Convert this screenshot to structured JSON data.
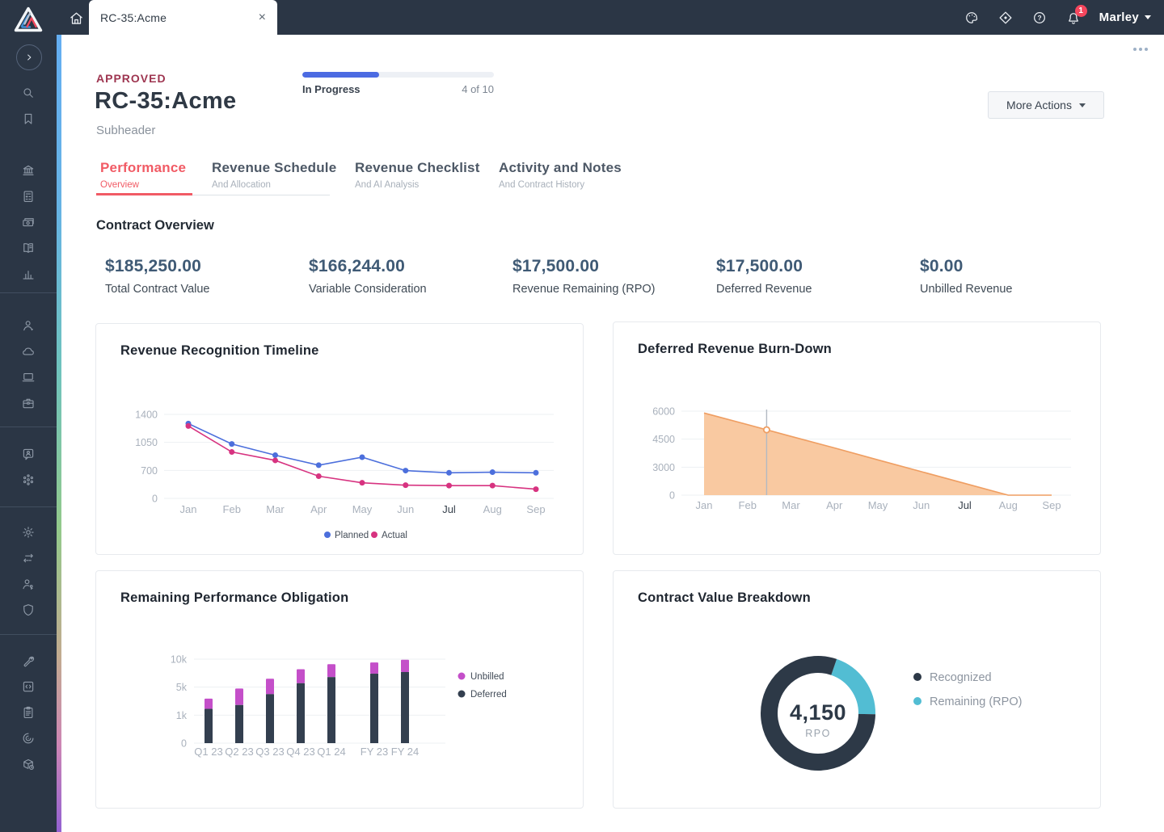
{
  "topbar": {
    "tab_title": "RC-35:Acme",
    "user_name": "Marley",
    "notification_count": "1",
    "icons": [
      "palette",
      "target",
      "help",
      "bell"
    ],
    "glyphs": {
      "close": "×"
    }
  },
  "sidebar": {
    "logo": "company-logo",
    "collapse": "chevron-right",
    "top_icons": [
      "search",
      "bookmark"
    ],
    "groups": [
      [
        "bank",
        "calculator",
        "cash",
        "book",
        "bar-chart"
      ],
      [
        "person",
        "cloud",
        "laptop",
        "briefcase"
      ],
      [
        "chat-person",
        "network"
      ],
      [
        "gear",
        "swap-arrows",
        "person-key",
        "shield"
      ],
      [
        "wrench",
        "code",
        "clipboard",
        "power",
        "package"
      ]
    ]
  },
  "header": {
    "status_badge": "APPROVED",
    "title": "RC-35:Acme",
    "subtitle": "Subheader",
    "progress": {
      "label": "In Progress",
      "count": "4 of 10",
      "percent": 40
    },
    "more_actions_label": "More Actions"
  },
  "tabs": [
    {
      "label": "Performance",
      "sublabel": "Overview",
      "active": true
    },
    {
      "label": "Revenue Schedule",
      "sublabel": "And Allocation",
      "active": false
    },
    {
      "label": "Revenue Checklist",
      "sublabel": "And AI Analysis",
      "active": false
    },
    {
      "label": "Activity and Notes",
      "sublabel": "And Contract History",
      "active": false
    }
  ],
  "overview": {
    "heading": "Contract Overview",
    "stats": [
      {
        "value": "$185,250.00",
        "label": "Total Contract Value"
      },
      {
        "value": "$166,244.00",
        "label": "Variable Consideration"
      },
      {
        "value": "$17,500.00",
        "label": "Revenue Remaining (RPO)"
      },
      {
        "value": "$17,500.00",
        "label": "Deferred Revenue"
      },
      {
        "value": "$0.00",
        "label": "Unbilled Revenue"
      }
    ]
  },
  "colors": {
    "chrome_bg": "#2b3645",
    "accent_red": "#f15b65",
    "status_red": "#9e3550",
    "progress_blue": "#4c6be2",
    "stat_value_blue": "#3f5a75"
  },
  "chart_data": [
    {
      "type": "line",
      "title": "Revenue Recognition Timeline",
      "x": [
        "Jan",
        "Feb",
        "Mar",
        "Apr",
        "May",
        "Jun",
        "Jul",
        "Aug",
        "Sep"
      ],
      "highlight_x": "Jul",
      "ylim": [
        0,
        1400
      ],
      "yticks": [
        0,
        700,
        1050,
        1400
      ],
      "ytick_labels": [
        "0",
        "700",
        "1050",
        "1400"
      ],
      "grid": true,
      "legend_position": "bottom",
      "series": [
        {
          "name": "Planned",
          "color": "#4c6fdc",
          "values": [
            1285,
            1030,
            890,
            765,
            865,
            695,
            640,
            655,
            640
          ]
        },
        {
          "name": "Actual",
          "color": "#d73380",
          "values": [
            1255,
            930,
            825,
            555,
            390,
            330,
            320,
            320,
            230
          ]
        }
      ]
    },
    {
      "type": "area",
      "title": "Deferred Revenue Burn-Down",
      "x": [
        "Jan",
        "Feb",
        "Mar",
        "Apr",
        "May",
        "Jun",
        "Jul",
        "Aug",
        "Sep"
      ],
      "highlight_x": "Jul",
      "ylim": [
        0,
        6000
      ],
      "yticks": [
        0,
        3000,
        4500,
        6000
      ],
      "ytick_labels": [
        "0",
        "3000",
        "4500",
        "6000"
      ],
      "grid": true,
      "series": [
        {
          "name": "Deferred Revenue",
          "line_color": "#ef9e62",
          "fill_color": "#f9c9a1",
          "values": [
            5900,
            5280,
            4650,
            4030,
            3390,
            2520,
            1260,
            0,
            0
          ]
        }
      ],
      "marker": {
        "x_index": 1.44,
        "value": 5000
      }
    },
    {
      "type": "bar",
      "title": "Remaining Performance Obligation",
      "categories": [
        "Q1 23",
        "Q2 23",
        "Q3 23",
        "Q4 23",
        "Q1 24",
        "FY 23",
        "FY 24"
      ],
      "gap_after_index": 4,
      "ylim": [
        0,
        10000
      ],
      "yticks": [
        0,
        1000,
        5000,
        10000
      ],
      "ytick_labels": [
        "0",
        "1k",
        "5k",
        "10k"
      ],
      "grid": true,
      "legend_position": "right",
      "legend_order": [
        "Unbilled",
        "Deferred"
      ],
      "series": [
        {
          "name": "Deferred",
          "color": "#333f4f",
          "values": [
            1900,
            2450,
            4000,
            5700,
            6800,
            7400,
            7700
          ]
        },
        {
          "name": "Unbilled",
          "color": "#c44fc9",
          "values": [
            1460,
            2350,
            2500,
            2500,
            2300,
            2000,
            2200
          ]
        }
      ]
    },
    {
      "type": "pie",
      "title": "Contract Value Breakdown",
      "donut": true,
      "center_value": "4,150",
      "center_label": "RPO",
      "start_angle_deg": 19,
      "slices": [
        {
          "name": "Remaining (RPO)",
          "color": "#52bdd3",
          "percent": 20
        },
        {
          "name": "Recognized",
          "color": "#2d3947",
          "percent": 80
        }
      ],
      "legend_order": [
        "Recognized",
        "Remaining (RPO)"
      ],
      "legend_position": "right"
    }
  ]
}
